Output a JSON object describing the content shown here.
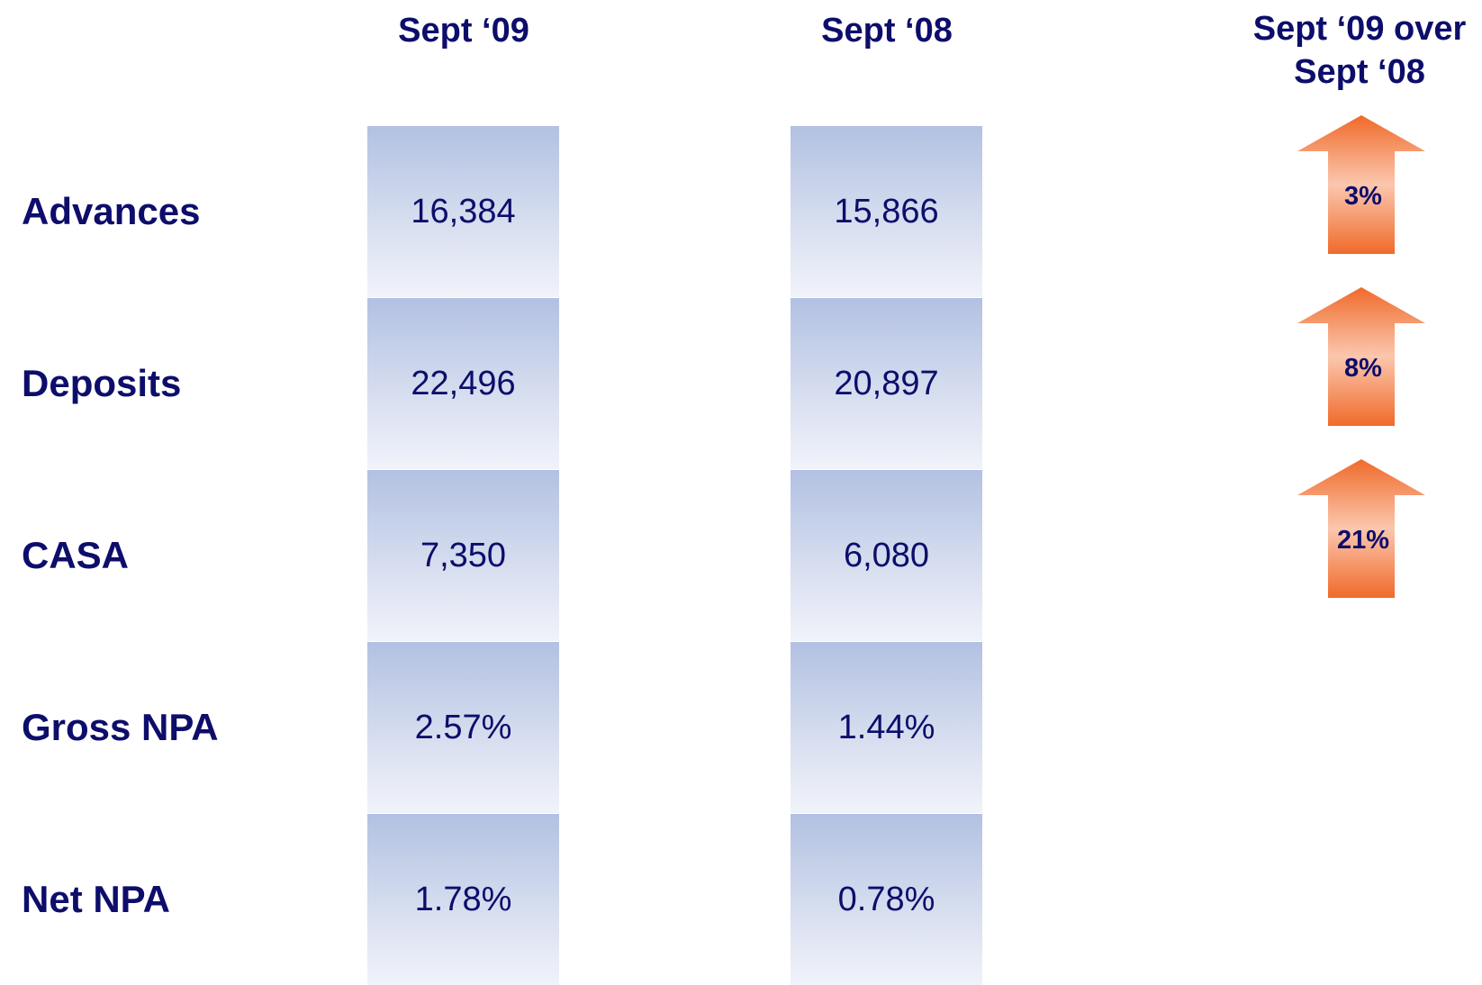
{
  "columns": [
    "Sept ‘09",
    "Sept ‘08",
    "Sept ‘09 over Sept ‘08"
  ],
  "rows": [
    {
      "label": "Advances",
      "sept09": "16,384",
      "sept08": "15,866",
      "change": "3%"
    },
    {
      "label": "Deposits",
      "sept09": "22,496",
      "sept08": "20,897",
      "change": "8%"
    },
    {
      "label": "CASA",
      "sept09": "7,350",
      "sept08": "6,080",
      "change": "21%"
    },
    {
      "label": "Gross NPA",
      "sept09": "2.57%",
      "sept08": "1.44%"
    },
    {
      "label": "Net NPA",
      "sept09": "1.78%",
      "sept08": "0.78%"
    }
  ]
}
